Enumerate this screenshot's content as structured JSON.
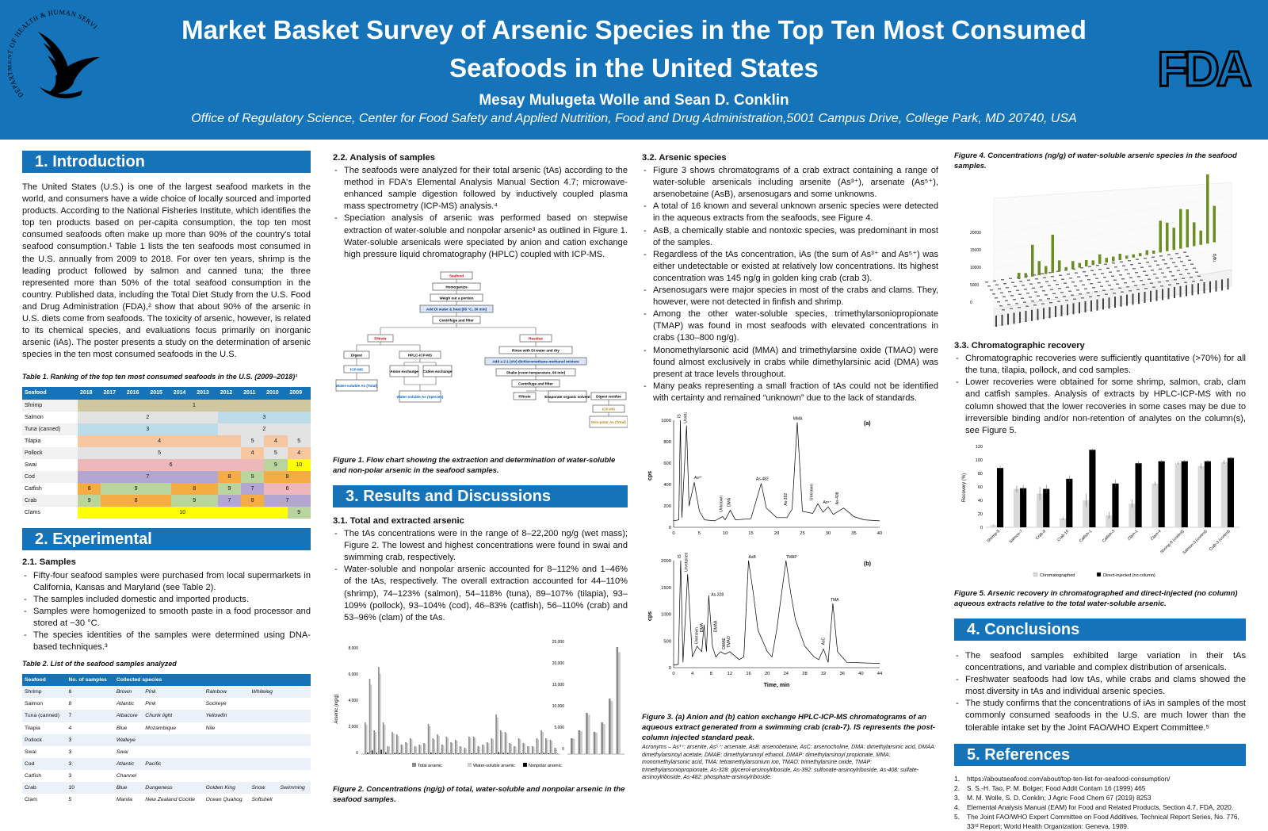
{
  "header": {
    "title_line1": "Market Basket Survey of Arsenic Species in the Top Ten Most Consumed",
    "title_line2": "Seafoods in the United States",
    "authors": "Mesay Mulugeta Wolle and Sean D. Conklin",
    "affiliation": "Office of Regulatory Science, Center for Food Safety and Applied Nutrition, Food and Drug Administration,5001 Campus Drive, College Park, MD 20740, USA",
    "hhs_seal_text": "DEPARTMENT OF HEALTH & HUMAN SERVICES USA",
    "fda_logo": "FDA"
  },
  "intro": {
    "heading": "1. Introduction",
    "body": "The United States (U.S.) is one of the largest seafood markets in the world, and consumers have a wide choice of locally sourced and imported products. According to the National Fisheries Institute, which identifies the top ten products based on per-capita consumption,  the top ten most consumed seafoods often make up more than 90% of the country's total seafood consumption.¹ Table 1 lists the ten seafoods most consumed in the U.S. annually from 2009 to 2018. For over ten years, shrimp is the leading product followed by salmon and canned tuna; the three represented more than 50% of the total seafood consumption in the country. Published data, including the Total Diet Study from the U.S. Food and Drug Administration (FDA),² show that about 90% of the arsenic in U.S. diets come from seafoods. The toxicity of arsenic, however, is related to its chemical species, and evaluations focus primarily on inorganic arsenic (iAs). The poster presents a study on the determination of arsenic species in the ten most consumed seafoods in the U.S.",
    "table1_caption": "Table 1. Ranking of the top ten most consumed seafoods in the U.S. (2009–2018)¹",
    "table1_headers": [
      "Seafood",
      "2018",
      "2017",
      "2016",
      "2015",
      "2014",
      "2013",
      "2012",
      "2011",
      "2010",
      "2009"
    ],
    "table1_rows": [
      {
        "name": "Shrimp",
        "cells": [
          {
            "t": "1",
            "span": 10,
            "c": "#cfc7a0"
          }
        ]
      },
      {
        "name": "Salmon",
        "cells": [
          {
            "t": "2",
            "span": 6,
            "c": "#e3e3e3"
          },
          {
            "t": "3",
            "span": 4,
            "c": "#bcdcea"
          }
        ]
      },
      {
        "name": "Tuna (canned)",
        "cells": [
          {
            "t": "3",
            "span": 6,
            "c": "#bcdcea"
          },
          {
            "t": "2",
            "span": 4,
            "c": "#e3e3e3"
          }
        ]
      },
      {
        "name": "Tilapia",
        "cells": [
          {
            "t": "4",
            "span": 7,
            "c": "#f6c7a0"
          },
          {
            "t": "5",
            "span": 1,
            "c": "#e3e3e3"
          },
          {
            "t": "4",
            "span": 1,
            "c": "#f6c7a0"
          },
          {
            "t": "5",
            "span": 1,
            "c": "#e3e3e3"
          }
        ]
      },
      {
        "name": "Pollock",
        "cells": [
          {
            "t": "5",
            "span": 7,
            "c": "#e3e3e3"
          },
          {
            "t": "4",
            "span": 1,
            "c": "#f6c7a0"
          },
          {
            "t": "5",
            "span": 1,
            "c": "#e3e3e3"
          },
          {
            "t": "4",
            "span": 1,
            "c": "#f6c7a0"
          }
        ]
      },
      {
        "name": "Swai",
        "cells": [
          {
            "t": "6",
            "span": 8,
            "c": "#eeb8bb"
          },
          {
            "t": "9",
            "span": 1,
            "c": "#b9d49c"
          },
          {
            "t": "10",
            "span": 1,
            "c": "#ffff00"
          }
        ]
      },
      {
        "name": "Cod",
        "cells": [
          {
            "t": "7",
            "span": 6,
            "c": "#b3a7d1"
          },
          {
            "t": "8",
            "span": 1,
            "c": "#f6ac44"
          },
          {
            "t": "9",
            "span": 1,
            "c": "#b9d49c"
          },
          {
            "t": "8",
            "span": 2,
            "c": "#f6ac44"
          }
        ]
      },
      {
        "name": "Catfish",
        "cells": [
          {
            "t": "8",
            "span": 1,
            "c": "#f6ac44"
          },
          {
            "t": "9",
            "span": 3,
            "c": "#b9d49c"
          },
          {
            "t": "8",
            "span": 2,
            "c": "#f6ac44"
          },
          {
            "t": "9",
            "span": 1,
            "c": "#b9d49c"
          },
          {
            "t": "7",
            "span": 1,
            "c": "#b3a7d1"
          },
          {
            "t": "6",
            "span": 2,
            "c": "#eeb8bb"
          }
        ]
      },
      {
        "name": "Crab",
        "cells": [
          {
            "t": "9",
            "span": 1,
            "c": "#b9d49c"
          },
          {
            "t": "8",
            "span": 3,
            "c": "#f6ac44"
          },
          {
            "t": "9",
            "span": 2,
            "c": "#b9d49c"
          },
          {
            "t": "7",
            "span": 1,
            "c": "#b3a7d1"
          },
          {
            "t": "8",
            "span": 1,
            "c": "#f6ac44"
          },
          {
            "t": "7",
            "span": 2,
            "c": "#b3a7d1"
          }
        ]
      },
      {
        "name": "Clams",
        "cells": [
          {
            "t": "10",
            "span": 9,
            "c": "#ffff00"
          },
          {
            "t": "9",
            "span": 1,
            "c": "#b9d49c"
          }
        ]
      }
    ]
  },
  "experimental": {
    "heading": "2. Experimental",
    "samples_title": "2.1. Samples",
    "samples_bullets": [
      "Fifty-four seafood samples were purchased from local supermarkets in California, Kansas and Maryland (see Table 2).",
      "The samples included domestic and imported products.",
      "Samples were homogenized to smooth paste in a food processor and stored at −30 °C.",
      "The species identities of the samples were determined using DNA-based techniques.³"
    ],
    "table2_caption": "Table 2. List of the seafood samples analyzed",
    "table2_headers": [
      "Seafood",
      "No. of samples",
      "Collected species"
    ],
    "table2_rows": [
      [
        "Shrimp",
        "8",
        "Brown",
        "Pink",
        "Rainbow",
        "Whiteleg",
        ""
      ],
      [
        "Salmon",
        "8",
        "Atlantic",
        "Pink",
        "Sockeye",
        "",
        ""
      ],
      [
        "Tuna (canned)",
        "7",
        "Albacore",
        "Chunk light",
        "Yellowfin",
        "",
        ""
      ],
      [
        "Tilapia",
        "4",
        "Blue",
        "Mozambique",
        "Nile",
        "",
        ""
      ],
      [
        "Pollock",
        "3",
        "Walleye",
        "",
        "",
        "",
        ""
      ],
      [
        "Swai",
        "3",
        "Swai",
        "",
        "",
        "",
        ""
      ],
      [
        "Cod",
        "3",
        "Atlantic",
        "Pacific",
        "",
        "",
        ""
      ],
      [
        "Catfish",
        "3",
        "Channel",
        "",
        "",
        "",
        ""
      ],
      [
        "Crab",
        "10",
        "Blue",
        "Dungeness",
        "Golden King",
        "Snow",
        "Swimming"
      ],
      [
        "Clam",
        "5",
        "Manila",
        "New Zealand Cockle",
        "Ocean Quahog",
        "Softshell",
        ""
      ]
    ],
    "analysis_title": "2.2. Analysis of samples",
    "analysis_bullets": [
      "The seafoods were analyzed for their total arsenic (tAs) according to the method in FDA's Elemental Analysis Manual Section 4.7; microwave-enhanced sample digestion followed by inductively coupled plasma mass spectrometry (ICP-MS) analysis.⁴",
      "Speciation analysis of arsenic was performed based on stepwise extraction of water-soluble and nonpolar arsenic³ as outlined in Figure 1. Water-soluble arsenicals were speciated by anion and cation exchange high pressure liquid chromatography (HPLC) coupled with ICP-MS."
    ],
    "flow": {
      "seafood": "Seafood",
      "homogenize": "Homogenize",
      "weigh": "Weigh out a portion",
      "add": "Add DI water & heat (80 °C, 30 min)",
      "centrifuge": "Centrifuge and filter",
      "filtrate": "Filtrate",
      "residue": "Residue",
      "digest": "Digest",
      "hplc": "HPLC-ICP-MS",
      "icpms": "ICP-MS",
      "ws_total": "Water-soluble As (Total)",
      "anion": "Anion exchange",
      "cation": "Cation exchange",
      "ws_species": "Water-soluble As (Species)",
      "rinse": "Rinse with DI water and dry",
      "dcm": "Add a 2:1 (v/v) dichloromethane-methanol mixture",
      "shake": "Shake (room temperature, 60 min)",
      "centrifuge2": "Centrifuge and filter",
      "filtrate2": "Filtrate",
      "evap": "Evaporate organic solvent",
      "digest_res": "Digest residue",
      "icpms2": "ICP-MS",
      "np_total": "Non-polar As (Total)"
    },
    "fig1_caption": "Figure 1. Flow chart showing the extraction and determination of water-soluble and non-polar arsenic in the seafood samples."
  },
  "results": {
    "heading": "3. Results and Discussions",
    "total_title": "3.1. Total and extracted arsenic",
    "total_bullets": [
      "The tAs concentrations were in the range of 8–22,200 ng/g (wet mass); Figure 2. The lowest and highest concentrations were found in swai and swimming crab, respectively.",
      "Water-soluble and nonpolar arsenic accounted for 8–112% and 1–46% of the tAs, respectively. The overall extraction accounted for 44–110% (shrimp), 74–123% (salmon), 54–118% (tuna), 89–107% (tilapia), 93–109% (pollock), 93–104% (cod), 46–83% (catfish), 56–110% (crab) and 53–96% (clam) of the tAs."
    ],
    "fig2": {
      "ylabel": "Arsenic (ng/g)",
      "yticks_left": [
        "8,000",
        "6,000",
        "4,000",
        "2,000",
        "0"
      ],
      "yticks_right": [
        "25,000",
        "20,000",
        "15,000",
        "10,000",
        "5,000",
        "0"
      ],
      "legend": [
        "Total arsenic",
        "Water-soluble arsenic",
        "Nonpolar arsenic"
      ]
    },
    "fig2_caption": "Figure 2. Concentrations (ng/g) of total, water-soluble and nonpolar arsenic in the seafood samples.",
    "species_title": "3.2. Arsenic species",
    "species_bullets": [
      "Figure 3 shows chromatograms of a crab extract containing a range of water-soluble arsenicals including arsenite (As³⁺), arsenate (As⁵⁺), arsenobetaine (AsB), arsenosugars and some unknowns.",
      "A total of 16 known and several unknown arsenic species were detected in the aqueous extracts from the seafoods, see Figure 4.",
      "AsB, a chemically stable and nontoxic species, was predominant in most of the samples.",
      "Regardless of the tAs concentration, iAs (the sum of As³⁺ and As⁵⁺) was either undetectable or existed at relatively low concentrations. Its highest concentration was 145 ng/g in golden king crab (crab 3).",
      "Arsenosugars were major species in most of the crabs and clams. They, however, were not detected in finfish and shrimp.",
      "Among the other water-soluble species, trimethylarsoniopropionate (TMAP) was found in most seafoods with elevated concentrations in crabs (130–800 ng/g).",
      "Monomethylarsonic acid (MMA) and trimethylarsine oxide (TMAO) were found almost exclusively in crabs while dimethylarsinic acid (DMA) was present at trace levels throughout.",
      "Many peaks representing a small fraction of tAs could not be identified with certainty and remained “unknown” due to the lack of standards."
    ],
    "fig3a": {
      "tag": "(a)",
      "ylabel": "cps",
      "yticks": [
        "1000",
        "800",
        "600",
        "400",
        "200",
        "0"
      ],
      "xticks": [
        "0",
        "5",
        "10",
        "15",
        "20",
        "25",
        "30",
        "35",
        "40"
      ],
      "peaks": [
        "IS",
        "Unretained",
        "As³⁺",
        "Unknown",
        "DMA",
        "As-482",
        "As-392",
        "MMA",
        "Unknown",
        "As⁵⁺",
        "As-408"
      ]
    },
    "fig3b": {
      "tag": "(b)",
      "ylabel": "cps",
      "xlabel": "Time, min",
      "yticks": [
        "2000",
        "1500",
        "1000",
        "500",
        "0"
      ],
      "xticks": [
        "0",
        "4",
        "8",
        "12",
        "16",
        "20",
        "24",
        "28",
        "32",
        "36",
        "40",
        "44"
      ],
      "peaks": [
        "IS",
        "Unretained",
        "Unknown",
        "DMA",
        "As-328",
        "DMAA",
        "DMAE",
        "TMAO",
        "AsB",
        "TMAP",
        "AsC",
        "TMA"
      ]
    },
    "fig3_caption": "Figure 3. (a) Anion and (b) cation exchange HPLC-ICP-MS chromatograms of an aqueous extract generated from a swimming crab (crab-7). IS represents the post-column injected standard peak.",
    "fig3_acronyms": "Acronyms – As³⁺: arsenite, As⁵⁺: arsenate, AsB: arsenobetaine, AsC: arsenocholine, DMA: dimethylarsinic acid, DMAA: dimethylarsinoyl acetate, DMAE: dimethylarsinoyl ethanol, DMAP: dimethylarsinoyl propionate, MMA: monomethylarsonic acid, TMA: tetramethylarsonium ion, TMAO: trimethylarsine oxide, TMAP: trimethylarsoniopropionate, As-328: glycerol-arsinoylriboside, As-392: sulfonate-arsinoylriboside, As-408: sulfate-arsinoylriboside, As-482: phosphate-arsinoylriboside.",
    "fig4_caption": "Figure 4. Concentrations (ng/g) of water-soluble arsenic species in the seafood samples.",
    "fig4": {
      "ylabel": "ng/g",
      "yticks": [
        "20000",
        "15000",
        "10000",
        "5000",
        "0"
      ]
    },
    "recovery_title": "3.3. Chromatographic recovery",
    "recovery_bullets": [
      "Chromatographic recoveries were sufficiently quantitative (>70%) for all the tuna, tilapia, pollock, and cod samples.",
      "Lower recoveries were obtained for some shrimp, salmon, crab, clam and catfish samples. Analysis of extracts by HPLC-ICP-MS with no column showed that the lower recoveries in some cases may be due to irreversible binding and/or non-retention of analytes on the column(s), see Figure 5."
    ],
    "fig5_caption": "Figure 5. Arsenic recovery in chromatographed and direct-injected (no column) aqueous extracts relative to the total water-soluble arsenic."
  },
  "chart_data": {
    "type": "bar",
    "title": "",
    "ylabel": "Recovery (%)",
    "ylim": [
      0,
      120
    ],
    "yticks": [
      "0",
      "20",
      "40",
      "60",
      "80",
      "100",
      "120"
    ],
    "categories": [
      "Shrimp-5",
      "Salmon-7",
      "Crab-9",
      "Crab-10",
      "Catfish-1",
      "Catfish-3",
      "Clam-1",
      "Clam-4",
      "Shrimp-8 (control)",
      "Salmon-3 (control)",
      "Crab-3 (control)"
    ],
    "series": [
      {
        "name": "Chromatographed",
        "color": "#d9d9d9",
        "values": [
          3,
          57,
          50,
          13,
          40,
          18,
          35,
          65,
          95,
          91,
          97
        ],
        "err": [
          1,
          5,
          10,
          2,
          10,
          5,
          6,
          3,
          2,
          4,
          3
        ]
      },
      {
        "name": "Direct-injected (no column)",
        "color": "#000000",
        "values": [
          88,
          58,
          57,
          72,
          115,
          65,
          95,
          98,
          98,
          98,
          103
        ],
        "err": [
          3,
          5,
          6,
          5,
          2,
          6,
          3,
          2,
          2,
          2,
          2
        ]
      }
    ],
    "legend": "bottom"
  },
  "conclusions": {
    "heading": "4. Conclusions",
    "bullets": [
      "The seafood samples exhibited large variation in their tAs concentrations, and variable and complex distribution of arsenicals.",
      "Freshwater seafoods had low tAs, while crabs and clams showed the most diversity in tAs and individual arsenic species.",
      "The study confirms that the concentrations of iAs in samples of the most commonly consumed seafoods in the U.S. are much lower than the tolerable intake set by the Joint FAO/WHO Expert Committee.⁵"
    ]
  },
  "references": {
    "heading": "5. References",
    "items": [
      "https://aboutseafood.com/about/top-ten-list-for-seafood-consumption/",
      "S. S.-H. Tao, P. M. Bolger; Food Addit Contam 16 (1999) 465",
      "M. M. Wolle, S. D. Conklin; J Agric Food Chem 67 (2019) 8253",
      "Elemental Analysis Manual (EAM) for Food and Related Products, Section 4.7, FDA, 2020.",
      "The Joint FAO/WHO Expert Committee on Food Additives. Technical Report Series, No. 776, 33ʳᵈ Report; World Health Organization: Geneva, 1989."
    ],
    "nums": [
      "1.",
      "2.",
      "3.",
      "4.",
      "5."
    ]
  }
}
